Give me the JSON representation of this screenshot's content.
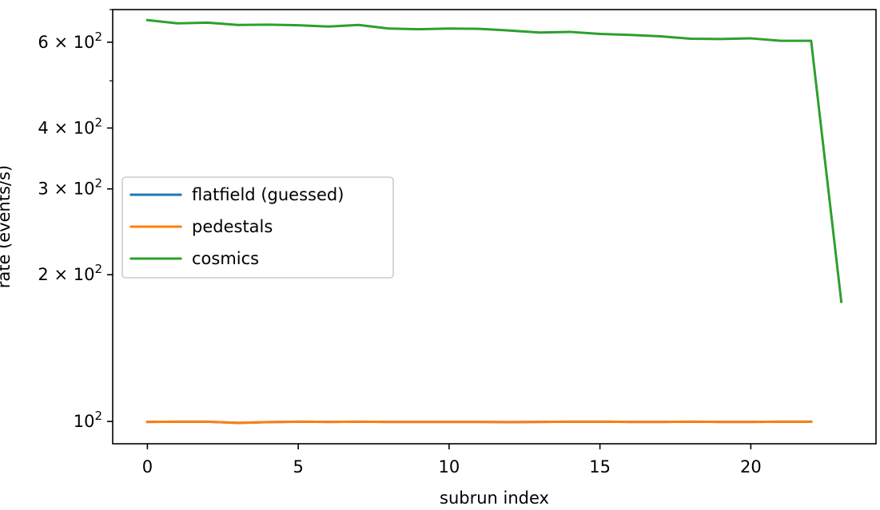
{
  "chart_data": {
    "type": "line",
    "title": "",
    "xlabel": "subrun index",
    "ylabel": "rate (events/s)",
    "xlim": [
      -1.15,
      24.15
    ],
    "ylim": [
      90,
      700
    ],
    "yscale": "log",
    "grid": false,
    "legend_placement": "center-left",
    "x_ticks": [
      {
        "value": 0,
        "label": "0"
      },
      {
        "value": 5,
        "label": "5"
      },
      {
        "value": 10,
        "label": "10"
      },
      {
        "value": 15,
        "label": "15"
      },
      {
        "value": 20,
        "label": "20"
      }
    ],
    "y_ticks": [
      {
        "value": 100,
        "base": "10",
        "exp": "2"
      },
      {
        "value": 200,
        "base": "2 × 10",
        "exp": "2"
      },
      {
        "value": 300,
        "base": "3 × 10",
        "exp": "2"
      },
      {
        "value": 400,
        "base": "4 × 10",
        "exp": "2"
      },
      {
        "value": 600,
        "base": "6 × 10",
        "exp": "2"
      }
    ],
    "y_minor_ticks": [
      500,
      700
    ],
    "series": [
      {
        "name": "flatfield (guessed)",
        "color": "#1f77b4",
        "x": [
          0,
          1,
          2,
          3,
          4,
          5,
          6,
          7,
          8,
          9,
          10,
          11,
          12,
          13,
          14,
          15,
          16,
          17,
          18,
          19,
          20,
          21,
          22
        ],
        "values": [
          99.8,
          99.9,
          99.9,
          99.3,
          99.7,
          99.9,
          99.8,
          99.9,
          99.8,
          99.8,
          99.8,
          99.8,
          99.7,
          99.8,
          99.9,
          99.9,
          99.8,
          99.8,
          99.9,
          99.8,
          99.8,
          99.9,
          99.9
        ]
      },
      {
        "name": "pedestals",
        "color": "#ff7f0e",
        "x": [
          0,
          1,
          2,
          3,
          4,
          5,
          6,
          7,
          8,
          9,
          10,
          11,
          12,
          13,
          14,
          15,
          16,
          17,
          18,
          19,
          20,
          21,
          22
        ],
        "values": [
          99.8,
          99.9,
          99.9,
          99.3,
          99.7,
          99.9,
          99.8,
          99.9,
          99.8,
          99.8,
          99.8,
          99.8,
          99.7,
          99.8,
          99.9,
          99.9,
          99.8,
          99.8,
          99.9,
          99.8,
          99.8,
          99.9,
          99.9
        ]
      },
      {
        "name": "cosmics",
        "color": "#2ca02c",
        "x": [
          0,
          1,
          2,
          3,
          4,
          5,
          6,
          7,
          8,
          9,
          10,
          11,
          12,
          13,
          14,
          15,
          16,
          17,
          18,
          19,
          20,
          21,
          22,
          23
        ],
        "values": [
          666,
          656,
          658,
          651,
          652,
          650,
          646,
          651,
          640,
          638,
          640,
          639,
          634,
          628,
          630,
          624,
          621,
          617,
          610,
          609,
          611,
          604,
          604,
          176
        ]
      }
    ]
  }
}
